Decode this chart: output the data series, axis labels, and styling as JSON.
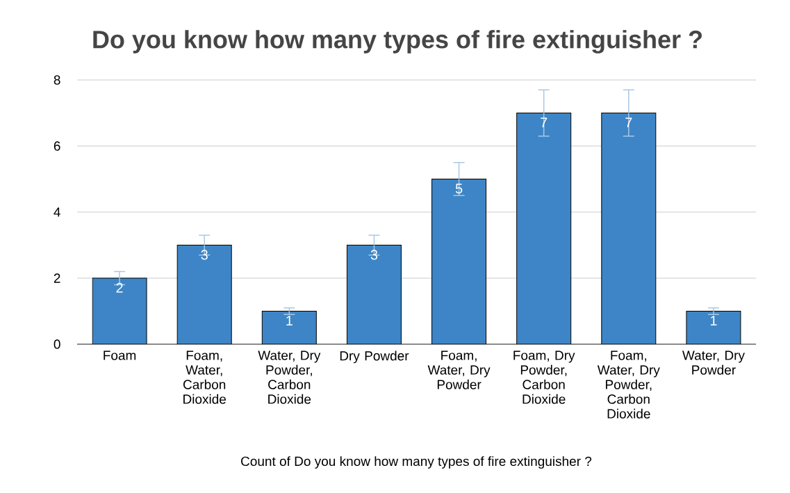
{
  "chart_data": {
    "type": "bar",
    "title": "Do you know how many types of fire extinguisher ?",
    "xlabel": "Count of Do you know how many types of fire extinguisher ?",
    "categories": [
      "Foam",
      "Foam, Water, Carbon Dioxide",
      "Water, Dry Powder, Carbon Dioxide",
      "Dry Powder",
      "Foam, Water, Dry Powder",
      "Foam, Dry Powder, Carbon Dioxide",
      "Foam, Water, Dry Powder, Carbon Dioxide",
      "Water, Dry Powder"
    ],
    "values": [
      2,
      3,
      1,
      3,
      5,
      7,
      7,
      1
    ],
    "errors": [
      0.2,
      0.3,
      0.1,
      0.3,
      0.5,
      0.7,
      0.7,
      0.1
    ],
    "color": "#3d85c6",
    "data_labels": true,
    "ylim": [
      0,
      8
    ],
    "yticks": [
      0,
      2,
      4,
      6,
      8
    ],
    "grid": "y"
  }
}
